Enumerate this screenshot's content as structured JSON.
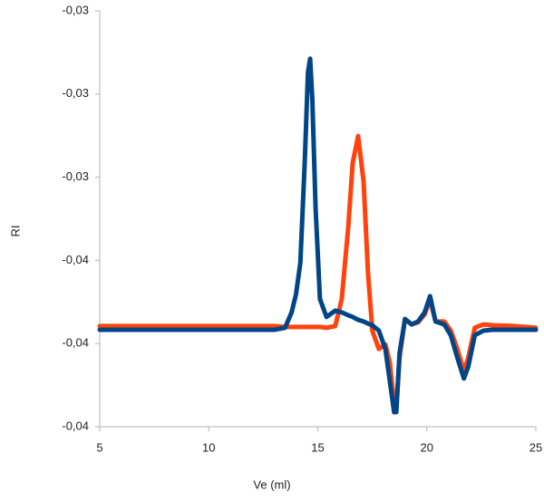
{
  "chart_data": {
    "type": "line",
    "xlabel": "Ve (ml)",
    "ylabel": "RI",
    "x": [
      5,
      6,
      7,
      8,
      9,
      10,
      11,
      12,
      13,
      13.5,
      13.8,
      14,
      14.2,
      14.4,
      14.55,
      14.65,
      14.75,
      14.9,
      15.1,
      15.4,
      15.8,
      16.1,
      16.4,
      16.6,
      16.85,
      17.1,
      17.3,
      17.5,
      17.8,
      18.1,
      18.3,
      18.5,
      18.6,
      18.75,
      19,
      19.3,
      19.6,
      19.9,
      20.15,
      20.4,
      20.8,
      21.1,
      21.4,
      21.7,
      21.9,
      22.2,
      22.6,
      23,
      24,
      25
    ],
    "series": [
      {
        "color": "#ff420e",
        "values": [
          -0.03758,
          -0.03758,
          -0.03758,
          -0.03758,
          -0.03758,
          -0.03758,
          -0.03758,
          -0.03758,
          -0.03758,
          -0.0376,
          -0.0376,
          -0.0376,
          -0.0376,
          -0.0376,
          -0.0376,
          -0.0376,
          -0.0376,
          -0.0376,
          -0.0376,
          -0.03762,
          -0.03758,
          -0.03693,
          -0.03518,
          -0.03366,
          -0.03301,
          -0.0341,
          -0.03627,
          -0.03769,
          -0.03813,
          -0.03802,
          -0.03845,
          -0.03943,
          -0.03954,
          -0.03834,
          -0.03741,
          -0.03754,
          -0.03749,
          -0.0373,
          -0.03695,
          -0.03747,
          -0.03747,
          -0.03769,
          -0.03813,
          -0.03867,
          -0.03834,
          -0.03762,
          -0.03754,
          -0.03756,
          -0.03758,
          -0.03762
        ]
      },
      {
        "color": "#004586",
        "values": [
          -0.03767,
          -0.03767,
          -0.03767,
          -0.03767,
          -0.03767,
          -0.03767,
          -0.03767,
          -0.03767,
          -0.03767,
          -0.03762,
          -0.03725,
          -0.03682,
          -0.03606,
          -0.03366,
          -0.03148,
          -0.03115,
          -0.03213,
          -0.03475,
          -0.03693,
          -0.03736,
          -0.03721,
          -0.03725,
          -0.03732,
          -0.03736,
          -0.03743,
          -0.03747,
          -0.03752,
          -0.03756,
          -0.03769,
          -0.03813,
          -0.03889,
          -0.03965,
          -0.03965,
          -0.03823,
          -0.03741,
          -0.03754,
          -0.03747,
          -0.03725,
          -0.03686,
          -0.03747,
          -0.03754,
          -0.0378,
          -0.03834,
          -0.03884,
          -0.03856,
          -0.0378,
          -0.03769,
          -0.03767,
          -0.03767,
          -0.03767
        ]
      }
    ],
    "xlim": [
      5,
      25
    ],
    "xticks": [
      5,
      10,
      15,
      20,
      25
    ],
    "ylim": [
      -0.04,
      -0.03
    ],
    "yticks": [
      {
        "value": -0.04,
        "label": "-0,04"
      },
      {
        "value": -0.038,
        "label": "-0,04"
      },
      {
        "value": -0.036,
        "label": "-0,04"
      },
      {
        "value": -0.034,
        "label": "-0,03"
      },
      {
        "value": -0.032,
        "label": "-0,03"
      },
      {
        "value": -0.03,
        "label": "-0,03"
      }
    ],
    "grid": false
  }
}
